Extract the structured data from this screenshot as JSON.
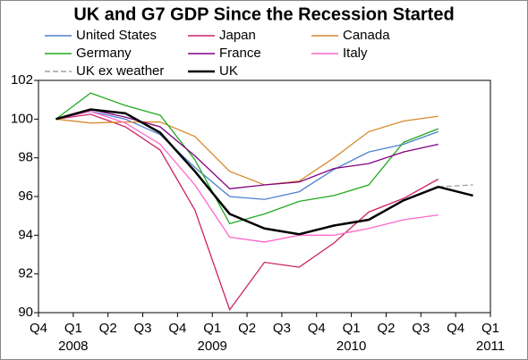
{
  "chart_data": {
    "type": "line",
    "title": "UK and G7 GDP Since the Recession Started",
    "x": [
      0.5,
      1.5,
      2.5,
      3.5,
      4.5,
      5.5,
      6.5,
      7.5,
      8.5,
      9.5,
      10.5,
      11.5,
      12.5
    ],
    "xlim": [
      0,
      13
    ],
    "xticks": [
      {
        "value": 0,
        "label": "Q4"
      },
      {
        "value": 1,
        "label": "Q1"
      },
      {
        "value": 2,
        "label": "Q2"
      },
      {
        "value": 3,
        "label": "Q3"
      },
      {
        "value": 4,
        "label": "Q4"
      },
      {
        "value": 5,
        "label": "Q1"
      },
      {
        "value": 6,
        "label": "Q2"
      },
      {
        "value": 7,
        "label": "Q3"
      },
      {
        "value": 8,
        "label": "Q4"
      },
      {
        "value": 9,
        "label": "Q1"
      },
      {
        "value": 10,
        "label": "Q2"
      },
      {
        "value": 11,
        "label": "Q3"
      },
      {
        "value": 12,
        "label": "Q4"
      },
      {
        "value": 13,
        "label": "Q1"
      }
    ],
    "year_labels": [
      {
        "value": 1,
        "label": "2008"
      },
      {
        "value": 5,
        "label": "2009"
      },
      {
        "value": 9,
        "label": "2010"
      },
      {
        "value": 13,
        "label": "2011"
      }
    ],
    "ylim": [
      90,
      102
    ],
    "yticks": [
      90,
      92,
      94,
      96,
      98,
      100,
      102
    ],
    "series": [
      {
        "name": "United States",
        "color": "#4f81d0",
        "values": [
          100,
          100.4,
          100.0,
          99.2,
          97.5,
          96.0,
          95.85,
          96.25,
          97.4,
          98.3,
          98.7,
          99.35,
          null
        ]
      },
      {
        "name": "Japan",
        "color": "#cc2266",
        "values": [
          100,
          100.25,
          99.6,
          98.4,
          95.3,
          90.15,
          92.6,
          92.35,
          93.6,
          95.2,
          95.9,
          96.9,
          null
        ]
      },
      {
        "name": "Canada",
        "color": "#d8892e",
        "values": [
          100,
          99.8,
          99.85,
          99.85,
          99.1,
          97.3,
          96.6,
          96.8,
          98.0,
          99.35,
          99.9,
          100.15,
          null
        ]
      },
      {
        "name": "Germany",
        "color": "#22aa22",
        "values": [
          100,
          101.35,
          100.7,
          100.2,
          97.9,
          94.6,
          95.1,
          95.75,
          96.05,
          96.6,
          98.8,
          99.5,
          null
        ]
      },
      {
        "name": "France",
        "color": "#800080",
        "values": [
          100,
          100.5,
          100.1,
          99.6,
          98.1,
          96.4,
          96.6,
          96.75,
          97.45,
          97.7,
          98.3,
          98.7,
          null
        ]
      },
      {
        "name": "Italy",
        "color": "#ff66cc",
        "values": [
          100,
          100.4,
          99.8,
          98.7,
          96.6,
          93.9,
          93.65,
          94.0,
          94.0,
          94.35,
          94.8,
          95.05,
          null
        ]
      },
      {
        "name": "UK ex weather",
        "color": "#a0a0a0",
        "dashed": true,
        "values": [
          null,
          null,
          null,
          null,
          null,
          null,
          null,
          null,
          null,
          null,
          null,
          96.5,
          96.6
        ]
      },
      {
        "name": "UK",
        "color": "#000000",
        "width": 2.5,
        "values": [
          100,
          100.5,
          100.3,
          99.3,
          97.3,
          95.1,
          94.35,
          94.05,
          94.5,
          94.8,
          95.8,
          96.5,
          96.05
        ]
      }
    ]
  }
}
